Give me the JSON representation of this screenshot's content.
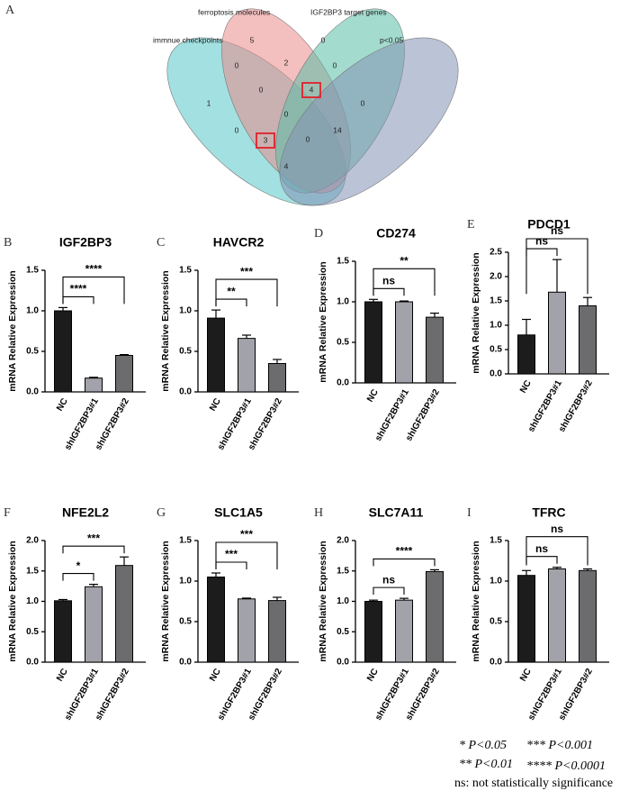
{
  "chart_data": [
    {
      "type": "venn",
      "panel": "A",
      "sets": [
        {
          "name": "immnue checkpoints",
          "color": "#58c6c8"
        },
        {
          "name": "ferroptosis molecules",
          "color": "#ea8a8a"
        },
        {
          "name": "IGF2BP3 target genes",
          "color": "#59bda7"
        },
        {
          "name": "p<0.05",
          "color": "#8391b4"
        }
      ],
      "regions": [
        {
          "value": 5
        },
        {
          "value": 0
        },
        {
          "value": 0
        },
        {
          "value": 2
        },
        {
          "value": 0
        },
        {
          "value": 1
        },
        {
          "value": 0
        },
        {
          "value": 4,
          "highlight": true
        },
        {
          "value": 0
        },
        {
          "value": 0
        },
        {
          "value": 0
        },
        {
          "value": 3,
          "highlight": true
        },
        {
          "value": 0
        },
        {
          "value": 14
        },
        {
          "value": 4
        }
      ],
      "highlight_color": "#e0202a"
    },
    {
      "type": "bar",
      "panel": "B",
      "title": "IGF2BP3",
      "ylabel": "mRNA Relative Expression",
      "categories": [
        "NC",
        "shIGF2BP3#1",
        "shIGF2BP3#2"
      ],
      "values": [
        1.0,
        0.17,
        0.45
      ],
      "errors": [
        0.04,
        0.01,
        0.01
      ],
      "colors": [
        "#1c1c1c",
        "#a2a2aa",
        "#6c6c6e"
      ],
      "ylim": [
        0,
        1.5
      ],
      "yticks": [
        {
          "value": 0,
          "label": "0.0"
        },
        {
          "value": 0.5,
          "label": "0.5"
        },
        {
          "value": 1,
          "label": "1.0"
        },
        {
          "value": 1.5,
          "label": "1.5"
        }
      ],
      "comparisons": [
        {
          "groups": [
            "NC",
            "shIGF2BP3#1"
          ],
          "label": "****"
        },
        {
          "groups": [
            "NC",
            "shIGF2BP3#2"
          ],
          "label": "****"
        }
      ]
    },
    {
      "type": "bar",
      "panel": "C",
      "title": "HAVCR2",
      "ylabel": "mRNA Relative Expression",
      "categories": [
        "NC",
        "shIGF2BP3#1",
        "shIGF2BP3#2"
      ],
      "values": [
        0.91,
        0.66,
        0.35
      ],
      "errors": [
        0.1,
        0.04,
        0.05
      ],
      "colors": [
        "#1c1c1c",
        "#a2a2aa",
        "#6c6c6e"
      ],
      "ylim": [
        0,
        1.5
      ],
      "yticks": [
        {
          "value": 0,
          "label": "0.0"
        },
        {
          "value": 0.5,
          "label": "0.5"
        },
        {
          "value": 1,
          "label": "1.0"
        },
        {
          "value": 1.5,
          "label": "1.5"
        }
      ],
      "comparisons": [
        {
          "groups": [
            "NC",
            "shIGF2BP3#1"
          ],
          "label": "**"
        },
        {
          "groups": [
            "NC",
            "shIGF2BP3#2"
          ],
          "label": "***"
        }
      ]
    },
    {
      "type": "bar",
      "panel": "D",
      "title": "CD274",
      "ylabel": "mRNA Relative Expression",
      "categories": [
        "NC",
        "shIGF2BP3#1",
        "shIGF2BP3#2"
      ],
      "values": [
        1.0,
        1.0,
        0.81
      ],
      "errors": [
        0.03,
        0.01,
        0.05
      ],
      "colors": [
        "#1c1c1c",
        "#a2a2aa",
        "#6c6c6e"
      ],
      "ylim": [
        0,
        1.5
      ],
      "yticks": [
        {
          "value": 0,
          "label": "0.0"
        },
        {
          "value": 0.5,
          "label": "0.5"
        },
        {
          "value": 1,
          "label": "1.0"
        },
        {
          "value": 1.5,
          "label": "1.5"
        }
      ],
      "comparisons": [
        {
          "groups": [
            "NC",
            "shIGF2BP3#1"
          ],
          "label": "ns"
        },
        {
          "groups": [
            "NC",
            "shIGF2BP3#2"
          ],
          "label": "**"
        }
      ]
    },
    {
      "type": "bar",
      "panel": "E",
      "title": "PDCD1",
      "ylabel": "mRNA Relative Expression",
      "categories": [
        "NC",
        "shIGF2BP3#1",
        "shIGF2BP3#2"
      ],
      "values": [
        0.8,
        1.68,
        1.4
      ],
      "errors": [
        0.32,
        0.67,
        0.17
      ],
      "colors": [
        "#1c1c1c",
        "#a2a2aa",
        "#6c6c6e"
      ],
      "ylim": [
        0,
        2.5
      ],
      "yticks": [
        {
          "value": 0,
          "label": "0.0"
        },
        {
          "value": 0.5,
          "label": "0.5"
        },
        {
          "value": 1,
          "label": "1.0"
        },
        {
          "value": 1.5,
          "label": "1.5"
        },
        {
          "value": 2,
          "label": "2.0"
        },
        {
          "value": 2.5,
          "label": "2.5"
        }
      ],
      "comparisons": [
        {
          "groups": [
            "NC",
            "shIGF2BP3#1"
          ],
          "label": "ns"
        },
        {
          "groups": [
            "NC",
            "shIGF2BP3#2"
          ],
          "label": "ns"
        }
      ]
    },
    {
      "type": "bar",
      "panel": "F",
      "title": "NFE2L2",
      "ylabel": "mRNA Relative Expression",
      "categories": [
        "NC",
        "shIGF2BP3#1",
        "shIGF2BP3#2"
      ],
      "values": [
        1.01,
        1.24,
        1.59
      ],
      "errors": [
        0.02,
        0.04,
        0.14
      ],
      "colors": [
        "#1c1c1c",
        "#a2a2aa",
        "#6c6c6e"
      ],
      "ylim": [
        0,
        2
      ],
      "yticks": [
        {
          "value": 0,
          "label": "0.0"
        },
        {
          "value": 0.5,
          "label": "0.5"
        },
        {
          "value": 1,
          "label": "1.0"
        },
        {
          "value": 1.5,
          "label": "1.5"
        },
        {
          "value": 2,
          "label": "2.0"
        }
      ],
      "comparisons": [
        {
          "groups": [
            "NC",
            "shIGF2BP3#1"
          ],
          "label": "*"
        },
        {
          "groups": [
            "NC",
            "shIGF2BP3#2"
          ],
          "label": "***"
        }
      ]
    },
    {
      "type": "bar",
      "panel": "G",
      "title": "SLC1A5",
      "ylabel": "mRNA Relative Expression",
      "categories": [
        "NC",
        "shIGF2BP3#1",
        "shIGF2BP3#2"
      ],
      "values": [
        1.05,
        0.78,
        0.76
      ],
      "errors": [
        0.05,
        0.01,
        0.04
      ],
      "colors": [
        "#1c1c1c",
        "#a2a2aa",
        "#6c6c6e"
      ],
      "ylim": [
        0,
        1.5
      ],
      "yticks": [
        {
          "value": 0,
          "label": "0.0"
        },
        {
          "value": 0.5,
          "label": "0.5"
        },
        {
          "value": 1,
          "label": "1.0"
        },
        {
          "value": 1.5,
          "label": "1.5"
        }
      ],
      "comparisons": [
        {
          "groups": [
            "NC",
            "shIGF2BP3#1"
          ],
          "label": "***"
        },
        {
          "groups": [
            "NC",
            "shIGF2BP3#2"
          ],
          "label": "***"
        }
      ]
    },
    {
      "type": "bar",
      "panel": "H",
      "title": "SLC7A11",
      "ylabel": "mRNA Relative Expression",
      "categories": [
        "NC",
        "shIGF2BP3#1",
        "shIGF2BP3#2"
      ],
      "values": [
        1.0,
        1.02,
        1.49
      ],
      "errors": [
        0.02,
        0.03,
        0.03
      ],
      "colors": [
        "#1c1c1c",
        "#a2a2aa",
        "#6c6c6e"
      ],
      "ylim": [
        0,
        2
      ],
      "yticks": [
        {
          "value": 0,
          "label": "0.0"
        },
        {
          "value": 0.5,
          "label": "0.5"
        },
        {
          "value": 1,
          "label": "1.0"
        },
        {
          "value": 1.5,
          "label": "1.5"
        },
        {
          "value": 2,
          "label": "2.0"
        }
      ],
      "comparisons": [
        {
          "groups": [
            "NC",
            "shIGF2BP3#1"
          ],
          "label": "ns"
        },
        {
          "groups": [
            "NC",
            "shIGF2BP3#2"
          ],
          "label": "****"
        }
      ]
    },
    {
      "type": "bar",
      "panel": "I",
      "title": "TFRC",
      "ylabel": "mRNA Relative Expression",
      "categories": [
        "NC",
        "shIGF2BP3#1",
        "shIGF2BP3#2"
      ],
      "values": [
        1.07,
        1.15,
        1.13
      ],
      "errors": [
        0.06,
        0.02,
        0.02
      ],
      "colors": [
        "#1c1c1c",
        "#a2a2aa",
        "#6c6c6e"
      ],
      "ylim": [
        0,
        1.5
      ],
      "yticks": [
        {
          "value": 0,
          "label": "0.0"
        },
        {
          "value": 0.5,
          "label": "0.5"
        },
        {
          "value": 1,
          "label": "1.0"
        },
        {
          "value": 1.5,
          "label": "1.5"
        }
      ],
      "comparisons": [
        {
          "groups": [
            "NC",
            "shIGF2BP3#1"
          ],
          "label": "ns"
        },
        {
          "groups": [
            "NC",
            "shIGF2BP3#2"
          ],
          "label": "ns"
        }
      ]
    }
  ],
  "notes": [
    "* P<0.05",
    "*** P<0.001",
    "** P<0.01",
    "**** P<0.0001",
    "ns: not statistically significance"
  ]
}
